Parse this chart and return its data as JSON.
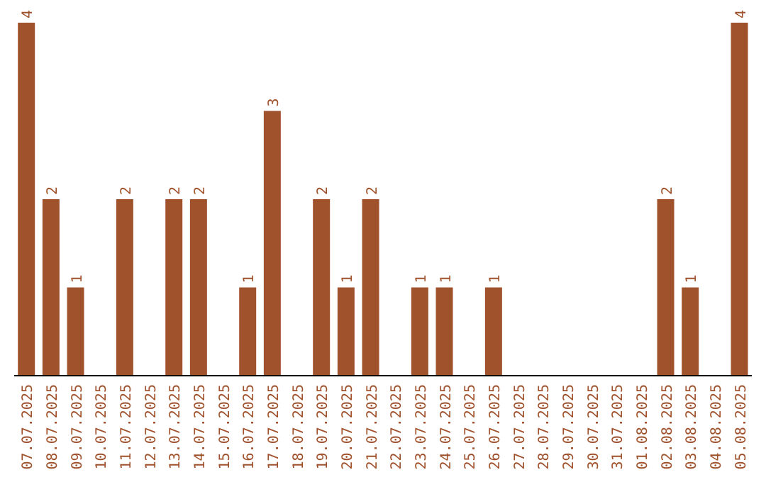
{
  "chart_data": {
    "type": "bar",
    "categories": [
      "07.07.2025",
      "08.07.2025",
      "09.07.2025",
      "10.07.2025",
      "11.07.2025",
      "12.07.2025",
      "13.07.2025",
      "14.07.2025",
      "15.07.2025",
      "16.07.2025",
      "17.07.2025",
      "18.07.2025",
      "19.07.2025",
      "20.07.2025",
      "21.07.2025",
      "22.07.2025",
      "23.07.2025",
      "24.07.2025",
      "25.07.2025",
      "26.07.2025",
      "27.07.2025",
      "28.07.2025",
      "29.07.2025",
      "30.07.2025",
      "31.07.2025",
      "01.08.2025",
      "02.08.2025",
      "03.08.2025",
      "04.08.2025",
      "05.08.2025"
    ],
    "values": [
      4,
      2,
      1,
      0,
      2,
      0,
      2,
      2,
      0,
      1,
      3,
      0,
      2,
      1,
      2,
      0,
      1,
      1,
      0,
      1,
      0,
      0,
      0,
      0,
      0,
      0,
      2,
      1,
      0,
      4
    ],
    "value_labels": [
      "4",
      "2",
      "1",
      null,
      "2",
      null,
      "2",
      "2",
      null,
      "1",
      "3",
      null,
      "2",
      "1",
      "2",
      null,
      "1",
      "1",
      null,
      "1",
      null,
      null,
      null,
      null,
      null,
      null,
      "2",
      "1",
      null,
      "4"
    ],
    "color": "#a0522d",
    "grid": false,
    "legend": false
  }
}
